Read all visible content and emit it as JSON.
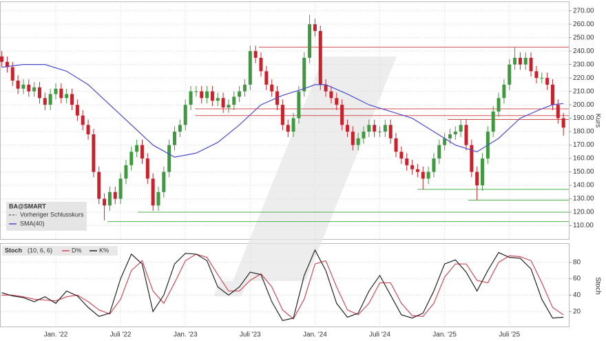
{
  "chart_data": [
    {
      "type": "candlestick",
      "title": "BA@SMART",
      "legend_extra": [
        "Vorheriger Schlusskurs"
      ],
      "ylabel": "Kurs",
      "up_color": "#3f9a3f",
      "down_color": "#c8232c",
      "grid": true,
      "xlim": [
        -5.1,
        47.5
      ],
      "ylim": [
        100,
        276
      ],
      "yticks": [
        {
          "value": 110,
          "label": "110.00"
        },
        {
          "value": 120,
          "label": "120.00"
        },
        {
          "value": 130,
          "label": "130.00"
        },
        {
          "value": 140,
          "label": "140.00"
        },
        {
          "value": 150,
          "label": "150.00"
        },
        {
          "value": 160,
          "label": "160.00"
        },
        {
          "value": 170,
          "label": "170.00"
        },
        {
          "value": 180,
          "label": "180.00"
        },
        {
          "value": 190,
          "label": "190.00"
        },
        {
          "value": 200,
          "label": "200.00"
        },
        {
          "value": 210,
          "label": "210.00"
        },
        {
          "value": 220,
          "label": "220.00"
        },
        {
          "value": 230,
          "label": "230.00"
        },
        {
          "value": 240,
          "label": "240.00"
        },
        {
          "value": 250,
          "label": "250.00"
        },
        {
          "value": 260,
          "label": "260.00"
        },
        {
          "value": 270,
          "label": "270.00"
        }
      ],
      "x": [
        -5,
        -4.5,
        -4,
        -3.5,
        -3,
        -2.5,
        -2,
        -1.5,
        -1,
        -0.5,
        0,
        0.5,
        1,
        1.5,
        2,
        2.5,
        3,
        3.5,
        4,
        4.5,
        5,
        5.5,
        6,
        6.5,
        7,
        7.5,
        8,
        8.5,
        9,
        9.5,
        10,
        10.5,
        11,
        11.5,
        12,
        12.5,
        13,
        13.5,
        14,
        14.5,
        15,
        15.5,
        16,
        16.5,
        17,
        17.5,
        18,
        18.5,
        19,
        19.5,
        20,
        20.5,
        21,
        21.5,
        22,
        22.5,
        23,
        23.5,
        24,
        24.5,
        25,
        25.5,
        26,
        26.5,
        27,
        27.5,
        28,
        28.5,
        29,
        29.5,
        30,
        30.5,
        31,
        31.5,
        32,
        32.5,
        33,
        33.5,
        34,
        34.5,
        35,
        35.5,
        36,
        36.5,
        37,
        37.5,
        38,
        38.5,
        39,
        39.5,
        40,
        40.5,
        41,
        41.5,
        42,
        42.5,
        43,
        43.5,
        44,
        44.5,
        45,
        45.5,
        46,
        46.5,
        47
      ],
      "open": [
        236,
        232,
        228,
        218,
        212,
        215,
        210,
        213,
        205,
        200,
        208,
        212,
        205,
        208,
        200,
        192,
        185,
        178,
        150,
        130,
        125,
        135,
        130,
        145,
        155,
        165,
        170,
        160,
        145,
        125,
        135,
        150,
        170,
        180,
        185,
        200,
        210,
        210,
        205,
        210,
        203,
        205,
        198,
        200,
        206,
        210,
        215,
        240,
        235,
        225,
        215,
        210,
        200,
        185,
        180,
        190,
        210,
        235,
        260,
        255,
        215,
        210,
        205,
        200,
        185,
        180,
        170,
        175,
        180,
        185,
        180,
        180,
        185,
        175,
        165,
        160,
        155,
        152,
        150,
        145,
        150,
        160,
        170,
        175,
        178,
        180,
        185,
        170,
        150,
        140,
        160,
        180,
        195,
        205,
        215,
        230,
        235,
        230,
        235,
        225,
        220,
        220,
        215,
        200,
        190
      ],
      "high": [
        240,
        236,
        232,
        222,
        219,
        219,
        217,
        217,
        209,
        212,
        216,
        216,
        212,
        212,
        204,
        196,
        189,
        182,
        154,
        134,
        139,
        139,
        149,
        159,
        169,
        174,
        174,
        164,
        149,
        139,
        154,
        174,
        184,
        189,
        204,
        214,
        214,
        214,
        214,
        214,
        209,
        209,
        204,
        210,
        214,
        219,
        244,
        244,
        239,
        229,
        219,
        214,
        204,
        189,
        194,
        214,
        239,
        267,
        264,
        259,
        219,
        214,
        209,
        204,
        189,
        184,
        179,
        184,
        189,
        189,
        184,
        189,
        189,
        179,
        169,
        164,
        159,
        156,
        154,
        154,
        164,
        174,
        179,
        182,
        184,
        189,
        189,
        174,
        154,
        164,
        184,
        199,
        209,
        219,
        234,
        243,
        239,
        239,
        239,
        229,
        224,
        224,
        219,
        204,
        194
      ],
      "low": [
        228,
        224,
        214,
        208,
        208,
        206,
        206,
        201,
        196,
        196,
        204,
        201,
        201,
        196,
        188,
        181,
        174,
        146,
        126,
        114,
        121,
        126,
        126,
        141,
        151,
        161,
        156,
        141,
        121,
        121,
        131,
        146,
        166,
        176,
        181,
        196,
        206,
        201,
        201,
        199,
        199,
        194,
        194,
        196,
        202,
        206,
        211,
        231,
        221,
        211,
        206,
        196,
        181,
        176,
        176,
        186,
        206,
        231,
        251,
        211,
        206,
        201,
        196,
        181,
        176,
        166,
        166,
        171,
        176,
        176,
        176,
        176,
        171,
        161,
        156,
        151,
        148,
        146,
        137,
        141,
        146,
        156,
        166,
        171,
        174,
        176,
        166,
        146,
        129,
        136,
        156,
        176,
        191,
        201,
        211,
        226,
        226,
        226,
        221,
        216,
        216,
        211,
        196,
        186,
        177
      ],
      "close": [
        232,
        228,
        218,
        212,
        215,
        210,
        213,
        205,
        200,
        208,
        212,
        205,
        208,
        200,
        192,
        185,
        178,
        150,
        130,
        125,
        135,
        130,
        145,
        155,
        165,
        170,
        160,
        145,
        125,
        135,
        150,
        170,
        180,
        185,
        200,
        210,
        210,
        205,
        210,
        203,
        205,
        198,
        200,
        206,
        210,
        215,
        240,
        235,
        225,
        215,
        210,
        200,
        185,
        180,
        190,
        210,
        235,
        260,
        255,
        215,
        210,
        205,
        200,
        185,
        180,
        170,
        175,
        180,
        185,
        180,
        180,
        185,
        175,
        165,
        160,
        155,
        152,
        150,
        145,
        150,
        160,
        170,
        175,
        178,
        180,
        185,
        170,
        150,
        140,
        160,
        180,
        195,
        205,
        215,
        230,
        235,
        230,
        235,
        225,
        220,
        220,
        215,
        200,
        190,
        183
      ],
      "series": [
        {
          "name": "SMA(40)",
          "color": "#4a4ad0",
          "x": [
            -5,
            -3,
            -1,
            1,
            3,
            5,
            7,
            9,
            11,
            13,
            15,
            17,
            19,
            21,
            23,
            24,
            25,
            27,
            29,
            31,
            33,
            35,
            37,
            39,
            41,
            43,
            45,
            46,
            47
          ],
          "values": [
            228,
            230,
            230,
            225,
            215,
            200,
            185,
            170,
            161,
            164,
            172,
            185,
            200,
            207,
            212,
            215,
            215,
            208,
            200,
            195,
            190,
            180,
            170,
            165,
            175,
            190,
            197,
            200,
            201
          ]
        }
      ],
      "levels": [
        {
          "value": 243,
          "x_start": 18.8,
          "color": "#d05050"
        },
        {
          "value": 197,
          "x_start": 12.9,
          "color": "#d05050"
        },
        {
          "value": 192,
          "x_start": 12.9,
          "color": "#d05050"
        },
        {
          "value": 189,
          "x_start": 36.3,
          "color": "#d05050"
        },
        {
          "value": 137,
          "x_start": 33.5,
          "color": "#50b050"
        },
        {
          "value": 129,
          "x_start": 38.2,
          "color": "#50b050"
        },
        {
          "value": 120,
          "x_start": 7.6,
          "color": "#50b050"
        },
        {
          "value": 113,
          "x_start": 4.8,
          "color": "#50b050"
        }
      ]
    },
    {
      "type": "line",
      "title": "Stoch",
      "subtitle": "(10, 6, 6)",
      "ylabel": "Stoch",
      "grid": true,
      "xlim": [
        -5.1,
        47.5
      ],
      "ylim": [
        0,
        100
      ],
      "yticks": [
        20,
        40,
        60,
        80
      ],
      "xticks": [
        {
          "value": 0,
          "label": "Jan. '22"
        },
        {
          "value": 6,
          "label": "Juli '22"
        },
        {
          "value": 12,
          "label": "Jan. '23"
        },
        {
          "value": 18,
          "label": "Juli '23"
        },
        {
          "value": 24,
          "label": "Jan. '24"
        },
        {
          "value": 30,
          "label": "Juli '24"
        },
        {
          "value": 36,
          "label": "Jan. '25"
        },
        {
          "value": 42,
          "label": "Juli '25"
        }
      ],
      "x": [
        -5,
        -4,
        -3,
        -2,
        -1,
        0,
        1,
        2,
        3,
        4,
        5,
        6,
        7,
        8,
        9,
        10,
        11,
        12,
        13,
        14,
        15,
        16,
        17,
        18,
        19,
        20,
        21,
        22,
        23,
        24,
        25,
        26,
        27,
        28,
        29,
        30,
        31,
        32,
        33,
        34,
        35,
        36,
        37,
        38,
        39,
        40,
        41,
        42,
        43,
        44,
        45,
        46,
        47
      ],
      "series": [
        {
          "name": "D%",
          "color": "#d04a5a",
          "values": [
            40,
            40,
            38,
            35,
            34,
            33,
            38,
            40,
            32,
            22,
            17,
            35,
            70,
            82,
            45,
            30,
            55,
            82,
            90,
            86,
            65,
            45,
            45,
            58,
            66,
            50,
            22,
            11,
            35,
            78,
            82,
            50,
            22,
            16,
            30,
            55,
            55,
            30,
            15,
            14,
            30,
            62,
            78,
            78,
            58,
            55,
            80,
            88,
            87,
            82,
            55,
            25,
            16
          ]
        },
        {
          "name": "K%",
          "color": "#222222",
          "values": [
            43,
            39,
            37,
            32,
            38,
            30,
            45,
            39,
            25,
            14,
            18,
            60,
            90,
            78,
            20,
            40,
            78,
            91,
            90,
            82,
            50,
            40,
            50,
            68,
            65,
            32,
            9,
            12,
            64,
            95,
            70,
            30,
            13,
            18,
            45,
            64,
            40,
            16,
            12,
            18,
            45,
            78,
            83,
            68,
            45,
            70,
            92,
            86,
            85,
            72,
            35,
            12,
            13
          ]
        }
      ]
    }
  ]
}
